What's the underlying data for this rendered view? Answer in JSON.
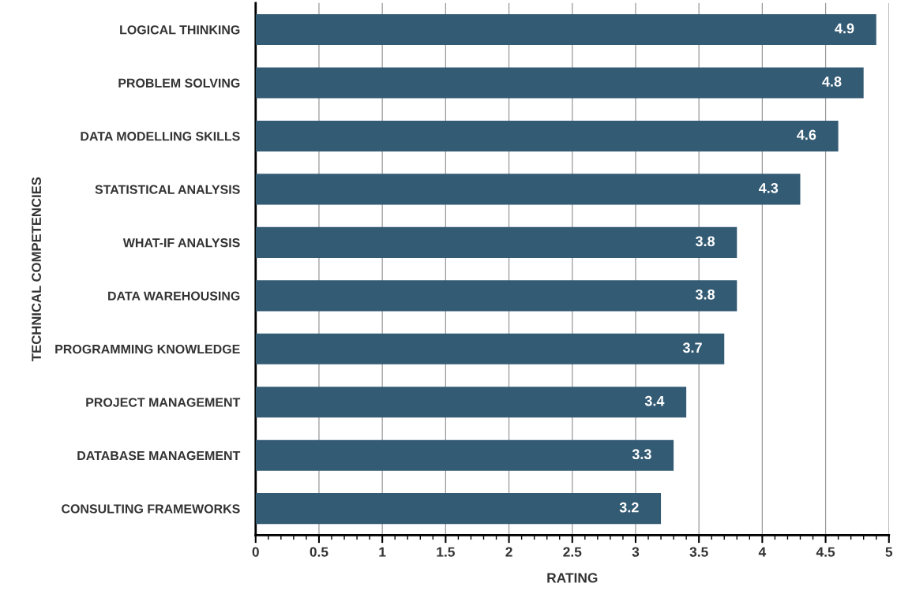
{
  "chart_data": {
    "type": "bar",
    "orientation": "horizontal",
    "xlabel": "RATING",
    "ylabel": "TECHNICAL COMPETENCIES",
    "categories": [
      "LOGICAL THINKING",
      "PROBLEM SOLVING",
      "DATA MODELLING SKILLS",
      "STATISTICAL ANALYSIS",
      "WHAT-IF ANALYSIS",
      "DATA WAREHOUSING",
      "PROGRAMMING KNOWLEDGE",
      "PROJECT MANAGEMENT",
      "DATABASE MANAGEMENT",
      "CONSULTING FRAMEWORKS"
    ],
    "values": [
      4.9,
      4.8,
      4.6,
      4.3,
      3.8,
      3.8,
      3.7,
      3.4,
      3.3,
      3.2
    ],
    "color": "#345b74",
    "data_labels": true,
    "grid": "x",
    "xlim": [
      0,
      5
    ],
    "xticks": [
      0,
      0.5,
      1,
      1.5,
      2,
      2.5,
      3,
      3.5,
      4,
      4.5,
      5
    ]
  }
}
